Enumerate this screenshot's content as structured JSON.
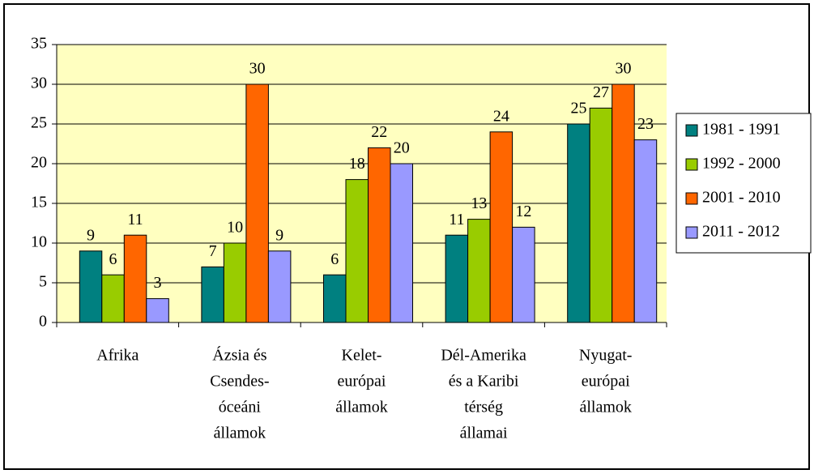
{
  "chart_data": {
    "type": "bar",
    "categories": [
      [
        "Afrika"
      ],
      [
        "Ázsia és",
        "Csendes-",
        "óceáni",
        "államok"
      ],
      [
        "Kelet-",
        "európai",
        "államok"
      ],
      [
        "Dél-Amerika",
        "és a Karibi",
        "térség",
        "államai"
      ],
      [
        "Nyugat-",
        "európai",
        "államok"
      ]
    ],
    "series": [
      {
        "name": "1981 - 1991",
        "color": "#008080",
        "values": [
          9,
          7,
          6,
          11,
          25
        ]
      },
      {
        "name": "1992 - 2000",
        "color": "#99cc00",
        "values": [
          6,
          10,
          18,
          13,
          27
        ]
      },
      {
        "name": "2001 - 2010",
        "color": "#ff6600",
        "values": [
          11,
          30,
          22,
          24,
          30
        ]
      },
      {
        "name": "2011 - 2012",
        "color": "#9999ff",
        "values": [
          3,
          9,
          20,
          12,
          23
        ]
      }
    ],
    "ylim": [
      0,
      35
    ],
    "yticks": [
      0,
      5,
      10,
      15,
      20,
      25,
      30,
      35
    ],
    "grid": true,
    "legend": "right",
    "plot_background": "#ffffc0"
  }
}
